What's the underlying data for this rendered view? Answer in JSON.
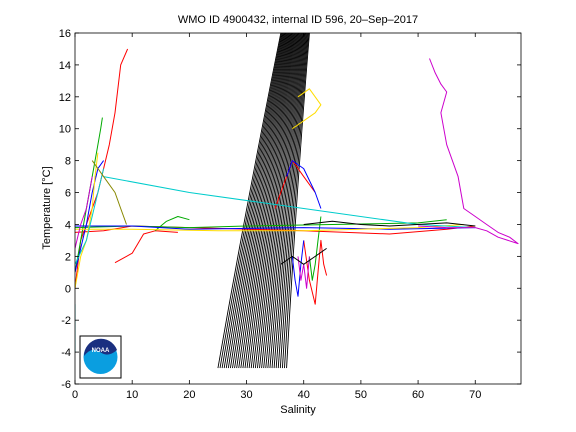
{
  "chart_data": {
    "type": "line",
    "title": "WMO ID 4900432, internal ID 596, 20–Sep–2017",
    "xlabel": "Salinity",
    "ylabel": "Temperature [°C]",
    "xlim": [
      0,
      78
    ],
    "ylim": [
      -6,
      16
    ],
    "xticks": [
      0,
      10,
      20,
      30,
      40,
      50,
      60,
      70
    ],
    "yticks": [
      -6,
      -4,
      -2,
      0,
      2,
      4,
      6,
      8,
      10,
      12,
      14,
      16
    ],
    "grid": false,
    "legend": "none",
    "logo": "NOAA",
    "density_contours": {
      "color": "#000000",
      "count": 34,
      "s_at_bottom_start": 25,
      "s_at_bottom_end": 37,
      "s_at_top_start": 36,
      "s_at_top_end": 41,
      "t_bottom": -5,
      "t_top": 16
    },
    "series": [
      {
        "color": "#ff0000",
        "points": [
          [
            0,
            0
          ],
          [
            1,
            3
          ],
          [
            2,
            4
          ],
          [
            4,
            6
          ],
          [
            6,
            9
          ],
          [
            7,
            11
          ],
          [
            8,
            14
          ],
          [
            9.2,
            15
          ]
        ]
      },
      {
        "color": "#ff0000",
        "points": [
          [
            0,
            3.5
          ],
          [
            5,
            3.6
          ],
          [
            10,
            3.9
          ],
          [
            20,
            3.8
          ],
          [
            40,
            3.6
          ],
          [
            55,
            3.4
          ],
          [
            65,
            3.7
          ],
          [
            70,
            3.9
          ]
        ]
      },
      {
        "color": "#ff0000",
        "points": [
          [
            7,
            1.6
          ],
          [
            10,
            2.2
          ],
          [
            12,
            3.4
          ],
          [
            14,
            3.6
          ],
          [
            18,
            3.5
          ]
        ]
      },
      {
        "color": "#ff0000",
        "points": [
          [
            40,
            3
          ],
          [
            41,
            0.5
          ],
          [
            42,
            -1
          ],
          [
            42.5,
            1
          ],
          [
            43,
            3
          ],
          [
            43.5,
            1.5
          ],
          [
            44,
            0.8
          ]
        ]
      },
      {
        "color": "#ff0000",
        "points": [
          [
            35,
            5
          ],
          [
            36,
            6
          ],
          [
            37,
            7
          ],
          [
            38,
            8
          ],
          [
            40,
            7
          ],
          [
            42,
            6
          ]
        ]
      },
      {
        "color": "#00aa00",
        "points": [
          [
            0,
            1
          ],
          [
            1,
            3
          ],
          [
            2,
            5
          ],
          [
            3,
            7
          ],
          [
            4,
            9
          ],
          [
            4.5,
            10
          ],
          [
            4.8,
            10.7
          ]
        ]
      },
      {
        "color": "#00aa00",
        "points": [
          [
            0,
            3.8
          ],
          [
            10,
            3.9
          ],
          [
            20,
            3.8
          ],
          [
            30,
            3.9
          ],
          [
            45,
            4
          ],
          [
            60,
            4.1
          ],
          [
            65,
            4.3
          ]
        ]
      },
      {
        "color": "#00aa00",
        "points": [
          [
            14,
            3.6
          ],
          [
            16,
            4.2
          ],
          [
            18,
            4.5
          ],
          [
            20,
            4.3
          ]
        ]
      },
      {
        "color": "#00aa00",
        "points": [
          [
            41,
            2
          ],
          [
            41.5,
            0.5
          ],
          [
            42,
            1.5
          ],
          [
            42.5,
            3
          ],
          [
            43,
            4.5
          ]
        ]
      },
      {
        "color": "#0000ff",
        "points": [
          [
            0,
            1
          ],
          [
            1,
            2.5
          ],
          [
            2,
            4
          ],
          [
            3,
            6
          ],
          [
            4,
            7.5
          ],
          [
            5,
            8
          ]
        ]
      },
      {
        "color": "#0000ff",
        "points": [
          [
            0,
            3.9
          ],
          [
            10,
            3.9
          ],
          [
            20,
            3.7
          ],
          [
            40,
            3.8
          ],
          [
            55,
            3.7
          ],
          [
            70,
            3.8
          ]
        ]
      },
      {
        "color": "#0000ff",
        "points": [
          [
            37,
            7
          ],
          [
            38,
            8
          ],
          [
            40,
            7.5
          ],
          [
            42,
            6
          ],
          [
            43,
            5
          ]
        ]
      },
      {
        "color": "#0000ff",
        "points": [
          [
            38,
            2
          ],
          [
            38.5,
            0.5
          ],
          [
            39,
            -0.5
          ],
          [
            39.5,
            1.5
          ],
          [
            40,
            3
          ]
        ]
      },
      {
        "color": "#ffdd00",
        "points": [
          [
            0,
            0
          ],
          [
            1,
            2
          ],
          [
            2,
            3
          ],
          [
            3,
            5
          ],
          [
            3.5,
            7
          ],
          [
            4,
            8.5
          ]
        ]
      },
      {
        "color": "#ffdd00",
        "points": [
          [
            0,
            3.7
          ],
          [
            10,
            3.7
          ],
          [
            25,
            3.6
          ],
          [
            40,
            3.6
          ],
          [
            60,
            3.8
          ],
          [
            68,
            4
          ]
        ]
      },
      {
        "color": "#ffdd00",
        "points": [
          [
            38,
            10
          ],
          [
            40,
            10.5
          ],
          [
            42,
            11
          ],
          [
            43,
            11.5
          ],
          [
            41,
            12.5
          ],
          [
            39,
            12
          ]
        ]
      },
      {
        "color": "#00cccc",
        "points": [
          [
            0,
            1.5
          ],
          [
            2,
            3
          ],
          [
            4,
            6
          ],
          [
            5,
            7.5
          ]
        ]
      },
      {
        "color": "#00cccc",
        "points": [
          [
            5,
            7
          ],
          [
            20,
            6
          ],
          [
            40,
            5
          ],
          [
            60,
            4
          ],
          [
            70,
            3.8
          ]
        ]
      },
      {
        "color": "#00cccc",
        "points": [
          [
            0,
            -1
          ],
          [
            0,
            -2
          ],
          [
            0,
            -3
          ],
          [
            0,
            -4
          ]
        ]
      },
      {
        "color": "#cc00cc",
        "points": [
          [
            62,
            14.4
          ],
          [
            63,
            13.5
          ],
          [
            64,
            12.8
          ],
          [
            65,
            12.3
          ],
          [
            64,
            11
          ],
          [
            65,
            9
          ],
          [
            67,
            7
          ],
          [
            68,
            5
          ],
          [
            70,
            4.5
          ],
          [
            72,
            4
          ],
          [
            74,
            3.5
          ],
          [
            76,
            3.2
          ],
          [
            77.5,
            2.8
          ],
          [
            74,
            3.2
          ],
          [
            72,
            3.6
          ],
          [
            70,
            3.8
          ],
          [
            65,
            3.8
          ],
          [
            60,
            3.9
          ]
        ]
      },
      {
        "color": "#cc00cc",
        "points": [
          [
            39,
            2
          ],
          [
            39.5,
            0.5
          ],
          [
            40,
            1.5
          ],
          [
            40.5,
            0
          ],
          [
            41,
            2
          ]
        ]
      },
      {
        "color": "#cc00cc",
        "points": [
          [
            0,
            2.5
          ],
          [
            1,
            4
          ],
          [
            2,
            5
          ],
          [
            3,
            7
          ]
        ]
      },
      {
        "color": "#888800",
        "points": [
          [
            3,
            8
          ],
          [
            5,
            7
          ],
          [
            7,
            6
          ],
          [
            8,
            5
          ],
          [
            9,
            4
          ]
        ]
      },
      {
        "color": "#000000",
        "points": [
          [
            40,
            4
          ],
          [
            45,
            4.2
          ],
          [
            50,
            4
          ],
          [
            55,
            3.9
          ],
          [
            65,
            4.1
          ],
          [
            70,
            3.9
          ]
        ]
      },
      {
        "color": "#000000",
        "points": [
          [
            36,
            1.5
          ],
          [
            38,
            2
          ],
          [
            40,
            1.5
          ],
          [
            42,
            2
          ],
          [
            44,
            2.5
          ]
        ]
      }
    ]
  }
}
